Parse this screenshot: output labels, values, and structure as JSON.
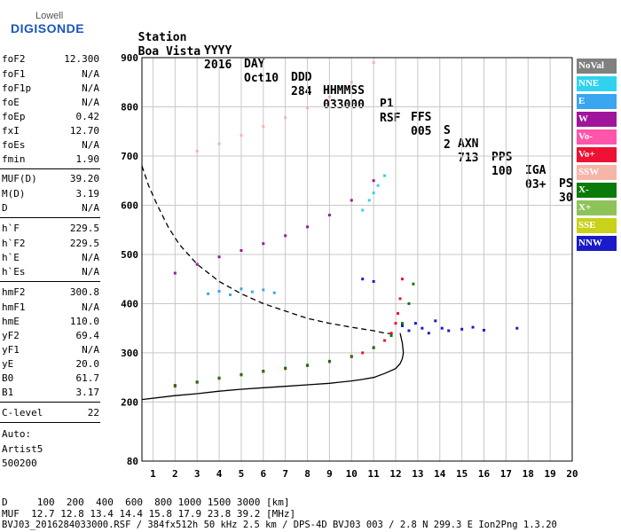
{
  "logo": {
    "company": "Lowell",
    "product": "DIGISONDE"
  },
  "header": {
    "labels": [
      "Station",
      "YYYY",
      "DAY",
      "DDD",
      "HHMMSS",
      "P1",
      "FFS",
      "S",
      "AXN",
      "PPS",
      "IGA",
      "PS"
    ],
    "values": [
      "Boa Vista",
      "2016",
      "Oct10",
      "284",
      "033000",
      "RSF",
      "005",
      "2",
      "713",
      "100",
      "03+",
      "30"
    ]
  },
  "params": [
    {
      "name": "foF2",
      "value": "12.300"
    },
    {
      "name": "foF1",
      "value": "N/A"
    },
    {
      "name": "foF1p",
      "value": "N/A"
    },
    {
      "name": "foE",
      "value": "N/A"
    },
    {
      "name": "foEp",
      "value": "0.42"
    },
    {
      "name": "fxI",
      "value": "12.70"
    },
    {
      "name": "foEs",
      "value": "N/A"
    },
    {
      "name": "fmin",
      "value": "1.90"
    },
    {
      "name": "MUF(D)",
      "value": "39.20"
    },
    {
      "name": "M(D)",
      "value": "3.19"
    },
    {
      "name": "D",
      "value": "N/A"
    },
    {
      "name": "h`F",
      "value": "229.5"
    },
    {
      "name": "h`F2",
      "value": "229.5"
    },
    {
      "name": "h`E",
      "value": "N/A"
    },
    {
      "name": "h`Es",
      "value": "N/A"
    },
    {
      "name": "hmF2",
      "value": "300.8"
    },
    {
      "name": "hmF1",
      "value": "N/A"
    },
    {
      "name": "hmE",
      "value": "110.0"
    },
    {
      "name": "yF2",
      "value": "69.4"
    },
    {
      "name": "yF1",
      "value": "N/A"
    },
    {
      "name": "yE",
      "value": "20.0"
    },
    {
      "name": "B0",
      "value": "61.7"
    },
    {
      "name": "B1",
      "value": "3.17"
    },
    {
      "name": "C-level",
      "value": "22"
    }
  ],
  "autoscaling": {
    "line1": "Auto:",
    "line2": "Artist5",
    "line3": "500200"
  },
  "footer": {
    "d_row": "D     100  200  400  600  800 1000 1500 3000 [km]",
    "muf_row": "MUF  12.7 12.8 13.4 14.4 15.8 17.9 23.8 39.2 [MHz]",
    "info_row": "BVJ03_2016284033000.RSF / 384fx512h 50 kHz 2.5 km / DPS-4D BVJ03 003 / 2.8 N 299.3 E Ion2Png 1.3.20"
  },
  "legend": [
    {
      "label": "NoVal",
      "color": "#808080",
      "text_color": "#ffffff"
    },
    {
      "label": "NNE",
      "color": "#2fd3f0",
      "text_color": "#ffffff"
    },
    {
      "label": "E",
      "color": "#3aa5f0",
      "text_color": "#ffffff"
    },
    {
      "label": "W",
      "color": "#a0159c",
      "text_color": "#ffffff"
    },
    {
      "label": "Vo-",
      "color": "#ff55aa",
      "text_color": "#ffffff"
    },
    {
      "label": "Vo+",
      "color": "#ee1133",
      "text_color": "#ffffff"
    },
    {
      "label": "SSW",
      "color": "#f7b5a8",
      "text_color": "#ffffff"
    },
    {
      "label": "X-",
      "color": "#0a7a0a",
      "text_color": "#ffffff"
    },
    {
      "label": "X+",
      "color": "#8ec35a",
      "text_color": "#ffffff"
    },
    {
      "label": "SSE",
      "color": "#c8d21a",
      "text_color": "#ffffff"
    },
    {
      "label": "NNW",
      "color": "#1a1ac8",
      "text_color": "#ffffff"
    }
  ],
  "chart_data": {
    "type": "scatter",
    "xlim": [
      0.5,
      20
    ],
    "ylim": [
      80,
      900
    ],
    "x_ticks": [
      1,
      2,
      3,
      4,
      5,
      6,
      7,
      8,
      9,
      10,
      11,
      12,
      13,
      14,
      15,
      16,
      17,
      18,
      19,
      20
    ],
    "y_ticks": [
      80,
      200,
      300,
      400,
      500,
      600,
      700,
      800,
      900
    ],
    "grid": true,
    "series": [
      {
        "name": "Vo+",
        "color": "#ee1133",
        "x": [
          2.0,
          3.0,
          4.0,
          5.0,
          6.0,
          7.0,
          8.0,
          9.0,
          10.0,
          10.5,
          11.0,
          11.5,
          11.8,
          12.0,
          12.1,
          12.2,
          12.3
        ],
        "y": [
          232,
          240,
          248,
          255,
          262,
          268,
          274,
          282,
          292,
          300,
          310,
          325,
          340,
          360,
          380,
          410,
          450
        ]
      },
      {
        "name": "X-",
        "color": "#0a7a0a",
        "x": [
          2.0,
          3.0,
          4.0,
          5.0,
          6.0,
          7.0,
          8.0,
          9.0,
          10.0,
          11.0,
          11.8,
          12.3,
          12.6,
          12.8
        ],
        "y": [
          234,
          241,
          249,
          256,
          263,
          269,
          275,
          283,
          293,
          311,
          335,
          360,
          400,
          440
        ]
      },
      {
        "name": "W",
        "color": "#a0159c",
        "x": [
          2.0,
          3.0,
          4.0,
          5.0,
          6.0,
          7.0,
          8.0,
          9.0,
          10.0,
          11.0
        ],
        "y": [
          462,
          480,
          495,
          508,
          522,
          538,
          556,
          580,
          610,
          650
        ]
      },
      {
        "name": "SSW",
        "color": "#f7b5a8",
        "x": [
          3.0,
          4.0,
          5.0,
          6.0,
          7.0,
          8.0,
          9.0,
          10.0,
          11.0
        ],
        "y": [
          710,
          725,
          742,
          760,
          778,
          798,
          820,
          850,
          890
        ]
      },
      {
        "name": "NNW",
        "color": "#1a1ac8",
        "x": [
          12.3,
          12.6,
          12.9,
          13.2,
          13.5,
          13.8,
          14.1,
          14.4,
          15.0,
          15.5,
          16.0,
          17.5,
          10.5,
          11.0
        ],
        "y": [
          355,
          345,
          360,
          350,
          340,
          365,
          350,
          345,
          348,
          352,
          346,
          350,
          450,
          445
        ]
      },
      {
        "name": "E",
        "color": "#3aa5f0",
        "x": [
          3.5,
          4.0,
          4.5,
          5.0,
          5.5,
          6.0,
          6.5
        ],
        "y": [
          420,
          425,
          418,
          430,
          424,
          428,
          422
        ]
      },
      {
        "name": "NNE",
        "color": "#2fd3f0",
        "x": [
          10.5,
          10.8,
          11.0,
          11.2,
          11.5
        ],
        "y": [
          590,
          610,
          625,
          640,
          660
        ]
      }
    ],
    "lines": [
      {
        "name": "true-height",
        "style": "solid",
        "color": "#000000",
        "x": [
          0.5,
          2,
          3,
          4,
          5,
          6,
          7,
          8,
          9,
          10,
          10.5,
          11,
          11.5,
          12.0,
          12.2,
          12.3,
          12.35,
          12.3,
          12.2
        ],
        "y": [
          205,
          213,
          217,
          222,
          226,
          229,
          232,
          235,
          238,
          243,
          246,
          250,
          258,
          268,
          278,
          288,
          300,
          320,
          340
        ]
      },
      {
        "name": "density-profile",
        "style": "dashed",
        "color": "#000000",
        "x": [
          0.5,
          0.8,
          1.2,
          1.7,
          2.2,
          3.0,
          4.0,
          5.0,
          6.0,
          7.0,
          8.0,
          9.0,
          10.0,
          11.0,
          11.5,
          12.0
        ],
        "y": [
          680,
          640,
          600,
          555,
          520,
          480,
          445,
          420,
          400,
          385,
          370,
          360,
          352,
          345,
          340,
          338
        ]
      }
    ]
  }
}
